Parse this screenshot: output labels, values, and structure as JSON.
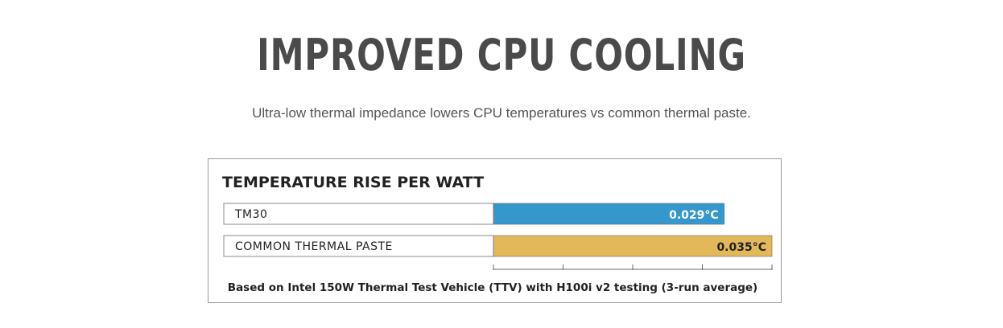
{
  "header": {
    "title": "IMPROVED CPU COOLING",
    "subtitle": "Ultra-low thermal impedance lowers CPU temperatures vs common thermal paste."
  },
  "chart_data": {
    "type": "bar",
    "orientation": "horizontal",
    "title": "TEMPERATURE RISE PER WATT",
    "categories": [
      "TM30",
      "COMMON THERMAL PASTE"
    ],
    "values": [
      0.029,
      0.035
    ],
    "value_labels": [
      "0.029°C",
      "0.035°C"
    ],
    "colors": [
      "#3597cc",
      "#e2b85a"
    ],
    "value_label_colors": [
      "#ffffff",
      "#222222"
    ],
    "xlim": [
      0,
      0.035
    ],
    "x_ticks": 5,
    "grid": false,
    "footnote": "Based on Intel 150W Thermal Test Vehicle (TTV) with H100i v2 testing (3-run average)"
  }
}
